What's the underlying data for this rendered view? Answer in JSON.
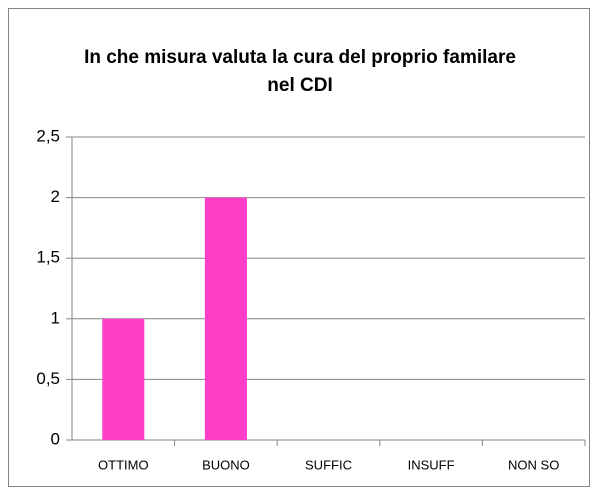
{
  "chart_data": {
    "type": "bar",
    "title": "In che misura valuta la cura del proprio familare nel CDI",
    "categories": [
      "OTTIMO",
      "BUONO",
      "SUFFIC",
      "INSUFF",
      "NON SO"
    ],
    "values": [
      1,
      2,
      0,
      0,
      0
    ],
    "color": "#ff3fc8",
    "ylim": [
      0,
      2.5
    ],
    "yticks": [
      0,
      {
        "value": 0.5,
        "label": "0,5"
      },
      1,
      {
        "value": 1.5,
        "label": "1,5"
      },
      2,
      {
        "value": 2.5,
        "label": "2,5"
      }
    ],
    "grid": true
  }
}
